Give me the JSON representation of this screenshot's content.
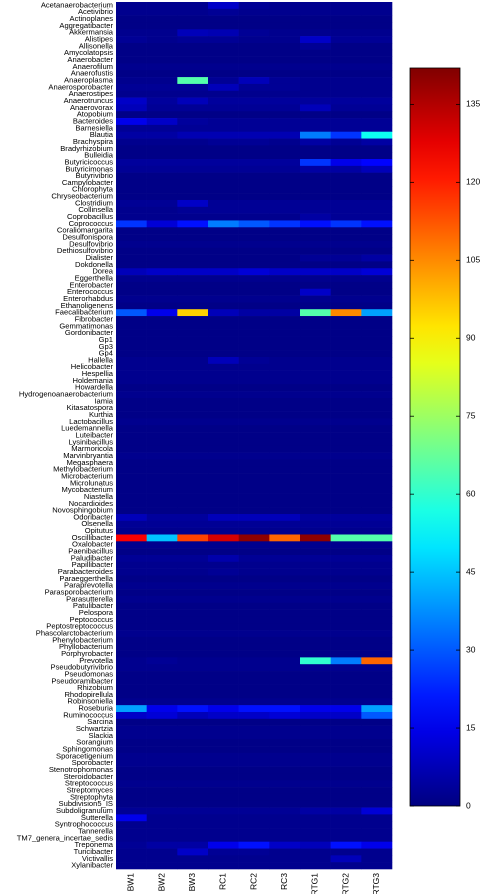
{
  "chart_data": {
    "type": "heatmap",
    "colormap": "jet",
    "rows": [
      "Acetanaerobacterium",
      "Acetivibrio",
      "Actinoplanes",
      "Aggregatibacter",
      "Akkermansia",
      "Alistipes",
      "Allisonella",
      "Amycolatopsis",
      "Anaerobacter",
      "Anaerofilum",
      "Anaerofustis",
      "Anaeroplasma",
      "Anaerosporobacter",
      "Anaerostipes",
      "Anaerotruncus",
      "Anaerovorax",
      "Atopobium",
      "Bacteroides",
      "Barnesiella",
      "Blautia",
      "Brachyspira",
      "Bradyrhizobium",
      "Bulleidia",
      "Butyricicoccus",
      "Butyricimonas",
      "Butyrivibrio",
      "Campylobacter",
      "Chlorophyta",
      "Chryseobacterium",
      "Clostridium",
      "Collinsella",
      "Coprobacillus",
      "Coprococcus",
      "Coraliomargarita",
      "Desulfonispora",
      "Desulfovibrio",
      "Dethiosulfovibrio",
      "Dialister",
      "Dokdonella",
      "Dorea",
      "Eggerthella",
      "Enterobacter",
      "Enterococcus",
      "Enterorhabdus",
      "Ethanoligenens",
      "Faecalibacterium",
      "Fibrobacter",
      "Gemmatimonas",
      "Gordonibacter",
      "Gp1",
      "Gp3",
      "Gp4",
      "Hallella",
      "Helicobacter",
      "Hespellia",
      "Holdemania",
      "Howardella",
      "Hydrogenoanaerobacterium",
      "Iamia",
      "Kitasatospora",
      "Kurthia",
      "Lactobacillus",
      "Luedemannella",
      "Luteibacter",
      "Lysinibacillus",
      "Marmoricola",
      "Marvinbryantia",
      "Megasphaera",
      "Methylobacterium",
      "Microbacterium",
      "Microlunatus",
      "Mycobacterium",
      "Niastella",
      "Nocardioides",
      "Novosphingobium",
      "Odoribacter",
      "Olsenella",
      "Opitutus",
      "Oscillibacter",
      "Oxalobacter",
      "Paenibacillus",
      "Paludibacter",
      "Papillibacter",
      "Parabacteroides",
      "Paraeggerthella",
      "Paraprevotella",
      "Parasporobacterium",
      "Parasutterella",
      "Patulibacter",
      "Pelospora",
      "Peptococcus",
      "Peptostreptococcus",
      "Phascolarctobacterium",
      "Phenylobacterium",
      "Phyllobacterium",
      "Porphyrobacter",
      "Prevotella",
      "Pseudobutyrivibrio",
      "Pseudomonas",
      "Pseudoramibacter",
      "Rhizobium",
      "Rhodopirellula",
      "Robinsoniella",
      "Roseburia",
      "Ruminococcus",
      "Sarcina",
      "Schwartzia",
      "Slackia",
      "Sorangium",
      "Sphingomonas",
      "Sporacetigenium",
      "Sporobacter",
      "Stenotrophomonas",
      "Steroidobacter",
      "Streptococcus",
      "Streptomyces",
      "Streptophyta",
      "Subdivision5_IS",
      "Subdoligranulum",
      "Sutterella",
      "Syntrophococcus",
      "Tannerella",
      "TM7_genera_incertae_sedis",
      "Treponema",
      "Turicibacter",
      "Victivallis",
      "Xylanibacter"
    ],
    "columns": [
      "BW1",
      "BW2",
      "BW3",
      "RC1",
      "RC2",
      "RC3",
      "RTG1",
      "RTG2",
      "RTG3"
    ],
    "values": [
      [
        2,
        2,
        2,
        10,
        3,
        2,
        2,
        2,
        2
      ],
      [
        2,
        2,
        2,
        3,
        2,
        2,
        2,
        2,
        2
      ],
      [
        1,
        1,
        1,
        1,
        1,
        1,
        1,
        1,
        1
      ],
      [
        1,
        1,
        1,
        1,
        1,
        1,
        1,
        1,
        1
      ],
      [
        2,
        2,
        8,
        7,
        3,
        2,
        2,
        2,
        2
      ],
      [
        3,
        2,
        3,
        3,
        2,
        2,
        10,
        3,
        3
      ],
      [
        1,
        1,
        1,
        1,
        1,
        1,
        3,
        1,
        1
      ],
      [
        1,
        1,
        1,
        1,
        1,
        1,
        1,
        1,
        1
      ],
      [
        1,
        1,
        1,
        1,
        1,
        1,
        1,
        1,
        1
      ],
      [
        2,
        2,
        2,
        2,
        2,
        2,
        2,
        2,
        2
      ],
      [
        1,
        1,
        1,
        1,
        1,
        1,
        1,
        1,
        1
      ],
      [
        2,
        2,
        65,
        3,
        8,
        3,
        2,
        2,
        2
      ],
      [
        3,
        3,
        3,
        8,
        3,
        3,
        2,
        2,
        2
      ],
      [
        2,
        2,
        2,
        2,
        2,
        2,
        2,
        2,
        2
      ],
      [
        10,
        4,
        8,
        4,
        4,
        4,
        4,
        4,
        4
      ],
      [
        8,
        3,
        3,
        3,
        3,
        3,
        8,
        3,
        3
      ],
      [
        1,
        1,
        1,
        1,
        1,
        1,
        1,
        1,
        1
      ],
      [
        15,
        10,
        4,
        3,
        3,
        3,
        3,
        3,
        3
      ],
      [
        3,
        3,
        3,
        3,
        3,
        3,
        3,
        3,
        3
      ],
      [
        5,
        5,
        7,
        7,
        7,
        7,
        35,
        25,
        55
      ],
      [
        2,
        2,
        2,
        3,
        3,
        2,
        5,
        3,
        5
      ],
      [
        1,
        1,
        1,
        1,
        1,
        1,
        1,
        1,
        1
      ],
      [
        1,
        1,
        1,
        1,
        1,
        1,
        1,
        1,
        1
      ],
      [
        4,
        4,
        4,
        4,
        4,
        4,
        25,
        15,
        18
      ],
      [
        3,
        3,
        3,
        3,
        3,
        3,
        5,
        5,
        8
      ],
      [
        1,
        1,
        1,
        1,
        1,
        1,
        1,
        1,
        1
      ],
      [
        1,
        1,
        1,
        1,
        1,
        1,
        1,
        1,
        1
      ],
      [
        1,
        1,
        1,
        1,
        1,
        1,
        1,
        1,
        1
      ],
      [
        1,
        1,
        1,
        1,
        1,
        1,
        1,
        1,
        1
      ],
      [
        3,
        3,
        10,
        3,
        3,
        3,
        3,
        3,
        3
      ],
      [
        2,
        2,
        3,
        3,
        3,
        3,
        3,
        3,
        3
      ],
      [
        2,
        2,
        2,
        2,
        2,
        2,
        5,
        3,
        3
      ],
      [
        25,
        12,
        20,
        35,
        30,
        25,
        20,
        25,
        20
      ],
      [
        1,
        1,
        1,
        1,
        1,
        1,
        1,
        1,
        1
      ],
      [
        1,
        1,
        1,
        1,
        1,
        1,
        1,
        1,
        1
      ],
      [
        2,
        2,
        2,
        2,
        2,
        2,
        2,
        2,
        2
      ],
      [
        1,
        1,
        1,
        1,
        1,
        1,
        1,
        1,
        1
      ],
      [
        1,
        1,
        1,
        1,
        1,
        1,
        3,
        3,
        5
      ],
      [
        1,
        1,
        1,
        1,
        1,
        1,
        1,
        1,
        1
      ],
      [
        8,
        10,
        10,
        10,
        12,
        10,
        10,
        10,
        12
      ],
      [
        2,
        2,
        2,
        2,
        2,
        2,
        2,
        2,
        2
      ],
      [
        1,
        1,
        1,
        1,
        1,
        1,
        1,
        1,
        1
      ],
      [
        1,
        1,
        1,
        1,
        1,
        1,
        10,
        1,
        1
      ],
      [
        2,
        2,
        2,
        2,
        2,
        2,
        2,
        2,
        2
      ],
      [
        1,
        1,
        1,
        1,
        1,
        1,
        1,
        1,
        1
      ],
      [
        30,
        15,
        95,
        8,
        5,
        5,
        65,
        105,
        40
      ],
      [
        1,
        1,
        1,
        1,
        1,
        1,
        1,
        1,
        1
      ],
      [
        1,
        1,
        1,
        1,
        1,
        1,
        1,
        1,
        1
      ],
      [
        1,
        1,
        1,
        1,
        1,
        1,
        1,
        1,
        1
      ],
      [
        1,
        1,
        1,
        1,
        1,
        1,
        1,
        1,
        1
      ],
      [
        1,
        1,
        1,
        1,
        1,
        1,
        1,
        1,
        1
      ],
      [
        1,
        1,
        1,
        1,
        1,
        1,
        1,
        1,
        1
      ],
      [
        2,
        2,
        2,
        8,
        3,
        2,
        2,
        2,
        2
      ],
      [
        2,
        2,
        2,
        2,
        2,
        2,
        2,
        2,
        2
      ],
      [
        2,
        2,
        2,
        2,
        2,
        2,
        2,
        2,
        2
      ],
      [
        2,
        2,
        2,
        2,
        2,
        2,
        2,
        2,
        2
      ],
      [
        1,
        1,
        1,
        1,
        1,
        1,
        1,
        1,
        1
      ],
      [
        2,
        2,
        2,
        2,
        2,
        2,
        2,
        2,
        2
      ],
      [
        1,
        1,
        1,
        1,
        1,
        1,
        1,
        1,
        1
      ],
      [
        1,
        1,
        1,
        1,
        1,
        1,
        1,
        1,
        1
      ],
      [
        1,
        1,
        1,
        1,
        1,
        1,
        1,
        1,
        1
      ],
      [
        2,
        2,
        2,
        2,
        2,
        2,
        2,
        2,
        2
      ],
      [
        1,
        1,
        1,
        1,
        1,
        1,
        1,
        1,
        1
      ],
      [
        1,
        1,
        1,
        1,
        1,
        1,
        1,
        1,
        1
      ],
      [
        1,
        1,
        1,
        1,
        1,
        1,
        1,
        1,
        1
      ],
      [
        1,
        1,
        1,
        1,
        1,
        1,
        1,
        1,
        1
      ],
      [
        2,
        2,
        2,
        2,
        2,
        2,
        2,
        2,
        2
      ],
      [
        1,
        1,
        1,
        1,
        1,
        1,
        1,
        1,
        1
      ],
      [
        1,
        1,
        1,
        1,
        1,
        1,
        1,
        1,
        1
      ],
      [
        1,
        1,
        1,
        1,
        1,
        1,
        1,
        1,
        1
      ],
      [
        1,
        1,
        1,
        1,
        1,
        1,
        1,
        1,
        1
      ],
      [
        1,
        1,
        1,
        1,
        1,
        1,
        1,
        1,
        1
      ],
      [
        1,
        1,
        1,
        1,
        1,
        1,
        1,
        1,
        1
      ],
      [
        1,
        1,
        1,
        1,
        1,
        1,
        1,
        1,
        1
      ],
      [
        1,
        1,
        1,
        1,
        1,
        1,
        1,
        1,
        1
      ],
      [
        8,
        4,
        4,
        8,
        8,
        8,
        4,
        4,
        4
      ],
      [
        3,
        3,
        3,
        3,
        3,
        3,
        3,
        3,
        3
      ],
      [
        2,
        2,
        2,
        2,
        2,
        2,
        2,
        2,
        2
      ],
      [
        125,
        45,
        115,
        130,
        140,
        110,
        140,
        65,
        65
      ],
      [
        2,
        2,
        2,
        2,
        2,
        2,
        2,
        2,
        2
      ],
      [
        1,
        1,
        1,
        1,
        1,
        1,
        1,
        1,
        1
      ],
      [
        3,
        3,
        3,
        6,
        3,
        3,
        3,
        3,
        3
      ],
      [
        2,
        2,
        2,
        2,
        2,
        2,
        2,
        2,
        2
      ],
      [
        2,
        2,
        2,
        3,
        2,
        2,
        2,
        2,
        2
      ],
      [
        1,
        1,
        1,
        1,
        1,
        1,
        1,
        1,
        1
      ],
      [
        2,
        2,
        2,
        2,
        2,
        2,
        2,
        2,
        2
      ],
      [
        1,
        1,
        1,
        1,
        1,
        1,
        1,
        1,
        1
      ],
      [
        2,
        2,
        2,
        2,
        2,
        2,
        2,
        2,
        2
      ],
      [
        1,
        1,
        1,
        1,
        1,
        1,
        1,
        1,
        1
      ],
      [
        1,
        1,
        1,
        1,
        1,
        1,
        1,
        1,
        1
      ],
      [
        1,
        1,
        1,
        1,
        1,
        1,
        1,
        1,
        1
      ],
      [
        1,
        1,
        1,
        1,
        1,
        1,
        1,
        1,
        1
      ],
      [
        2,
        2,
        2,
        2,
        2,
        2,
        2,
        2,
        2
      ],
      [
        1,
        1,
        1,
        1,
        1,
        1,
        1,
        1,
        1
      ],
      [
        1,
        1,
        1,
        1,
        1,
        1,
        1,
        1,
        1
      ],
      [
        1,
        1,
        1,
        1,
        1,
        1,
        1,
        1,
        1
      ],
      [
        2,
        3,
        2,
        2,
        2,
        2,
        60,
        35,
        110
      ],
      [
        2,
        2,
        2,
        2,
        2,
        2,
        2,
        2,
        2
      ],
      [
        1,
        1,
        1,
        1,
        1,
        1,
        1,
        1,
        1
      ],
      [
        1,
        1,
        1,
        1,
        1,
        1,
        1,
        1,
        1
      ],
      [
        1,
        1,
        1,
        1,
        1,
        1,
        1,
        1,
        1
      ],
      [
        1,
        1,
        1,
        1,
        1,
        1,
        1,
        1,
        1
      ],
      [
        2,
        2,
        2,
        2,
        2,
        2,
        2,
        2,
        2
      ],
      [
        40,
        15,
        20,
        15,
        20,
        20,
        15,
        15,
        40
      ],
      [
        10,
        12,
        8,
        10,
        10,
        12,
        10,
        10,
        30
      ],
      [
        1,
        1,
        1,
        1,
        1,
        1,
        1,
        1,
        1
      ],
      [
        2,
        2,
        2,
        2,
        2,
        2,
        2,
        2,
        2
      ],
      [
        2,
        2,
        2,
        2,
        2,
        2,
        2,
        2,
        2
      ],
      [
        1,
        1,
        1,
        1,
        1,
        1,
        1,
        1,
        1
      ],
      [
        1,
        1,
        1,
        1,
        1,
        1,
        1,
        1,
        1
      ],
      [
        2,
        2,
        2,
        2,
        2,
        2,
        2,
        2,
        2
      ],
      [
        2,
        2,
        2,
        2,
        2,
        2,
        2,
        2,
        2
      ],
      [
        1,
        1,
        1,
        1,
        1,
        1,
        1,
        1,
        1
      ],
      [
        1,
        1,
        1,
        1,
        1,
        1,
        1,
        1,
        1
      ],
      [
        2,
        2,
        2,
        2,
        2,
        2,
        2,
        2,
        2
      ],
      [
        1,
        1,
        1,
        1,
        1,
        1,
        1,
        1,
        1
      ],
      [
        1,
        1,
        1,
        1,
        1,
        1,
        1,
        1,
        1
      ],
      [
        1,
        1,
        1,
        1,
        1,
        1,
        1,
        1,
        1
      ],
      [
        3,
        3,
        3,
        3,
        3,
        3,
        5,
        5,
        12
      ],
      [
        15,
        2,
        2,
        2,
        2,
        2,
        2,
        2,
        2
      ],
      [
        2,
        2,
        2,
        2,
        2,
        2,
        2,
        2,
        2
      ],
      [
        2,
        2,
        2,
        2,
        2,
        2,
        2,
        2,
        2
      ],
      [
        2,
        2,
        2,
        2,
        2,
        2,
        2,
        2,
        2
      ],
      [
        3,
        5,
        5,
        15,
        20,
        10,
        8,
        20,
        15
      ],
      [
        2,
        2,
        10,
        3,
        3,
        2,
        2,
        2,
        2
      ],
      [
        2,
        2,
        2,
        2,
        2,
        2,
        2,
        8,
        2
      ],
      [
        2,
        2,
        2,
        2,
        2,
        2,
        2,
        2,
        2
      ]
    ],
    "zlim": [
      0,
      142
    ],
    "zticks": [
      0,
      15,
      30,
      45,
      60,
      75,
      90,
      105,
      120,
      135
    ]
  }
}
